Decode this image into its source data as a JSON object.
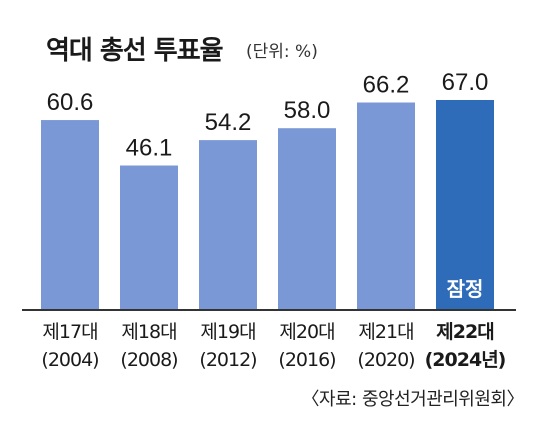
{
  "title": "역대 총선 투표율",
  "unit": "(단위: %)",
  "source": "〈자료: 중앙선거관리위원회〉",
  "colors": {
    "bar": "#7b98d6",
    "highlight": "#2e6bb8",
    "axis": "#333333"
  },
  "chart_data": {
    "type": "bar",
    "title": "역대 총선 투표율",
    "ylabel": "",
    "xlabel": "",
    "ylim": [
      0,
      67
    ],
    "categories": [
      "제17대 (2004)",
      "제18대 (2008)",
      "제19대 (2012)",
      "제20대 (2016)",
      "제21대 (2020)",
      "제22대 (2024년)"
    ],
    "tick_labels": [
      [
        "제17대",
        "(2004)"
      ],
      [
        "제18대",
        "(2008)"
      ],
      [
        "제19대",
        "(2012)"
      ],
      [
        "제20대",
        "(2016)"
      ],
      [
        "제21대",
        "(2020)"
      ],
      [
        "제22대",
        "(2024년)"
      ]
    ],
    "values": [
      60.6,
      46.1,
      54.2,
      58.0,
      66.2,
      67.0
    ],
    "value_labels": [
      "60.6",
      "46.1",
      "54.2",
      "58.0",
      "66.2",
      "67.0"
    ],
    "highlight_index": 5,
    "highlight_annotation": "잠정"
  }
}
